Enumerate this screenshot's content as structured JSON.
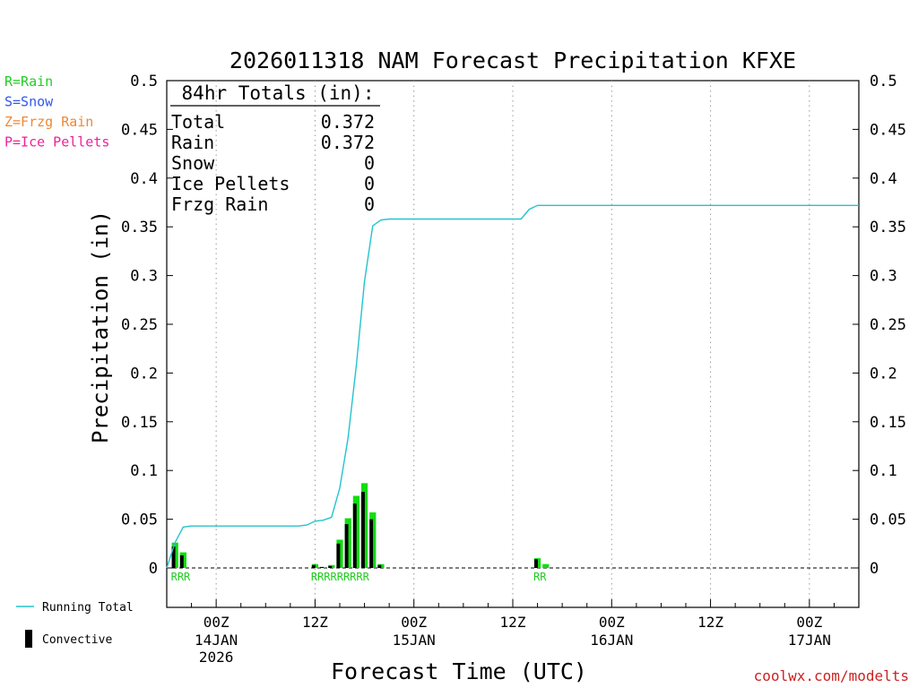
{
  "legend_left": [
    {
      "text": "R=Rain",
      "color": "#22cc22"
    },
    {
      "text": "S=Snow",
      "color": "#3355ee"
    },
    {
      "text": "Z=Frzg Rain",
      "color": "#ee8833"
    },
    {
      "text": "P=Ice Pellets",
      "color": "#ee2299"
    }
  ],
  "legend_bottom": {
    "running_total": "Running Total",
    "convective": "Convective"
  },
  "credit": "coolwx.com/modelts",
  "totals_box": {
    "heading": "84hr Totals (in):",
    "rows": [
      {
        "label": "Total",
        "value": "0.372"
      },
      {
        "label": "Rain",
        "value": "0.372"
      },
      {
        "label": "Snow",
        "value": "0"
      },
      {
        "label": "Ice Pellets",
        "value": "0"
      },
      {
        "label": "Frzg Rain",
        "value": "0"
      }
    ]
  },
  "colors": {
    "running_total_line": "#22c4cc",
    "rain_bar": "#11dd11",
    "convective_bar": "#000000",
    "rain_code": "#22cc22",
    "grid": "#999999"
  },
  "chart_data": {
    "type": "bar",
    "title": "2026011318 NAM Forecast Precipitation KFXE",
    "xlabel": "Forecast Time (UTC)",
    "ylabel": "Precipitation (in)",
    "ylim": [
      0,
      0.5
    ],
    "xlim_hours_from_init": [
      0,
      84
    ],
    "y_ticks": [
      "0",
      "0.05",
      "0.1",
      "0.15",
      "0.2",
      "0.25",
      "0.3",
      "0.35",
      "0.4",
      "0.45",
      "0.5"
    ],
    "x_ticks": [
      {
        "hour": 6,
        "label": "00Z",
        "date": "14JAN",
        "year": "2026"
      },
      {
        "hour": 18,
        "label": "12Z",
        "date": "",
        "year": ""
      },
      {
        "hour": 30,
        "label": "00Z",
        "date": "15JAN",
        "year": ""
      },
      {
        "hour": 42,
        "label": "12Z",
        "date": "",
        "year": ""
      },
      {
        "hour": 54,
        "label": "00Z",
        "date": "16JAN",
        "year": ""
      },
      {
        "hour": 66,
        "label": "12Z",
        "date": "",
        "year": ""
      },
      {
        "hour": 78,
        "label": "00Z",
        "date": "17JAN",
        "year": ""
      }
    ],
    "grid": "dotted vertical at 00Z and 12Z",
    "series": [
      {
        "name": "Running Total",
        "type": "line",
        "points": [
          [
            0,
            0.0
          ],
          [
            1,
            0.026
          ],
          [
            2,
            0.042
          ],
          [
            3,
            0.043
          ],
          [
            4,
            0.043
          ],
          [
            10,
            0.043
          ],
          [
            16,
            0.043
          ],
          [
            17,
            0.044
          ],
          [
            18,
            0.048
          ],
          [
            19,
            0.049
          ],
          [
            20,
            0.052
          ],
          [
            21,
            0.082
          ],
          [
            22,
            0.133
          ],
          [
            23,
            0.207
          ],
          [
            24,
            0.294
          ],
          [
            25,
            0.351
          ],
          [
            26,
            0.357
          ],
          [
            27,
            0.358
          ],
          [
            30,
            0.358
          ],
          [
            36,
            0.358
          ],
          [
            40,
            0.358
          ],
          [
            42,
            0.358
          ],
          [
            43,
            0.358
          ],
          [
            44,
            0.368
          ],
          [
            45,
            0.372
          ],
          [
            50,
            0.372
          ],
          [
            60,
            0.372
          ],
          [
            70,
            0.372
          ],
          [
            84,
            0.372
          ]
        ]
      },
      {
        "name": "Rain",
        "type": "bar",
        "hours": [
          1,
          2,
          18,
          19,
          20,
          21,
          22,
          23,
          24,
          25,
          26,
          45,
          46
        ],
        "values": [
          0.026,
          0.016,
          0.004,
          0.001,
          0.003,
          0.029,
          0.051,
          0.074,
          0.087,
          0.057,
          0.004,
          0.01,
          0.004
        ]
      },
      {
        "name": "Convective",
        "type": "bar",
        "hours": [
          1,
          2,
          18,
          19,
          20,
          21,
          22,
          23,
          24,
          25,
          26,
          45,
          46
        ],
        "values": [
          0.022,
          0.013,
          0.003,
          0.001,
          0.002,
          0.025,
          0.045,
          0.066,
          0.078,
          0.05,
          0.003,
          0.009,
          0.0
        ]
      }
    ],
    "precip_type_codes": [
      {
        "text": "RRR",
        "start_hour": 1
      },
      {
        "text": "RRRRRRRRR",
        "start_hour": 18
      },
      {
        "text": "RR",
        "start_hour": 45
      }
    ]
  }
}
